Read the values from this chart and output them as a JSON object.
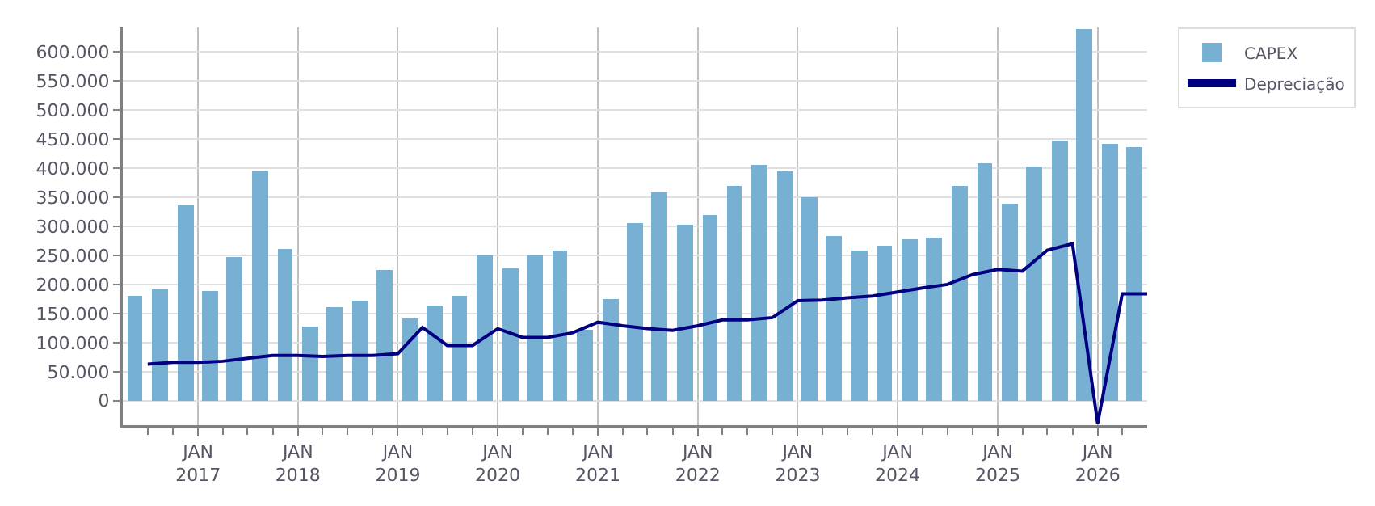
{
  "chart_data": {
    "type": "bar",
    "x": [
      "2016-05-15",
      "2016-08-15",
      "2016-11-15",
      "2017-02-15",
      "2017-05-15",
      "2017-08-15",
      "2017-11-15",
      "2018-02-15",
      "2018-05-15",
      "2018-08-15",
      "2018-11-15",
      "2019-02-15",
      "2019-05-15",
      "2019-08-15",
      "2019-11-15",
      "2020-02-15",
      "2020-05-15",
      "2020-08-15",
      "2020-11-15",
      "2021-02-15",
      "2021-05-15",
      "2021-08-15",
      "2021-11-15",
      "2022-02-15",
      "2022-05-15",
      "2022-08-15",
      "2022-11-15",
      "2023-02-15",
      "2023-05-15",
      "2023-08-15",
      "2023-11-15",
      "2024-02-15",
      "2024-05-15",
      "2024-08-15",
      "2024-11-15",
      "2025-02-15",
      "2025-05-15",
      "2025-08-15",
      "2025-11-15",
      "2026-02-15",
      "2026-05-15"
    ],
    "series": [
      {
        "name": "CAPEX",
        "color": "#77b0d3",
        "values": [
          181000,
          191000,
          335000,
          189000,
          246000,
          395000,
          262000,
          129000,
          160000,
          173000,
          225000,
          142000,
          163000,
          181000,
          251000,
          228000,
          251000,
          257000,
          121000,
          176000,
          306000,
          358000,
          303000,
          319000,
          369000,
          405000,
          395000,
          350000,
          283000,
          259000,
          267000,
          277000,
          280000,
          369000,
          408000,
          340000,
          403000,
          447000,
          640000,
          442000,
          437000
        ]
      },
      {
        "name": "Depreciação",
        "type": "line",
        "color": "#000080",
        "x": [
          "2016-07-01",
          "2016-10-01",
          "2017-01-01",
          "2017-04-01",
          "2017-07-01",
          "2017-10-01",
          "2018-01-01",
          "2018-04-01",
          "2018-07-01",
          "2018-10-01",
          "2019-01-01",
          "2019-04-01",
          "2019-07-01",
          "2019-10-01",
          "2020-01-01",
          "2020-04-01",
          "2020-07-01",
          "2020-10-01",
          "2021-01-01",
          "2021-04-01",
          "2021-07-01",
          "2021-10-01",
          "2022-01-01",
          "2022-04-01",
          "2022-07-01",
          "2022-10-01",
          "2023-01-01",
          "2023-04-01",
          "2023-07-01",
          "2023-10-01",
          "2024-01-01",
          "2024-04-01",
          "2024-07-01",
          "2024-10-01",
          "2025-01-01",
          "2025-04-01",
          "2025-07-01",
          "2025-10-01",
          "2026-01-01",
          "2026-04-01",
          "2026-07-01"
        ],
        "values": [
          63000,
          66000,
          66000,
          68000,
          73000,
          78000,
          78000,
          76000,
          78000,
          78000,
          81000,
          126000,
          95000,
          95000,
          124000,
          109000,
          109000,
          117000,
          135000,
          129000,
          124000,
          121000,
          129000,
          139000,
          139000,
          143000,
          172000,
          173000,
          177000,
          180000,
          187000,
          194000,
          200000,
          217000,
          226000,
          223000,
          259000,
          270000,
          -39000,
          184000,
          184000
        ]
      }
    ],
    "xlim": [
      "2016-04-01",
      "2026-07-01"
    ],
    "xticks": [
      {
        "value": "2016-07-01",
        "label": null
      },
      {
        "value": "2016-10-01",
        "label": null
      },
      {
        "value": "2017-01-01",
        "label": "JAN\n2017"
      },
      {
        "value": "2017-04-01",
        "label": null
      },
      {
        "value": "2017-07-01",
        "label": null
      },
      {
        "value": "2017-10-01",
        "label": null
      },
      {
        "value": "2018-01-01",
        "label": "JAN\n2018"
      },
      {
        "value": "2018-04-01",
        "label": null
      },
      {
        "value": "2018-07-01",
        "label": null
      },
      {
        "value": "2018-10-01",
        "label": null
      },
      {
        "value": "2019-01-01",
        "label": "JAN\n2019"
      },
      {
        "value": "2019-04-01",
        "label": null
      },
      {
        "value": "2019-07-01",
        "label": null
      },
      {
        "value": "2019-10-01",
        "label": null
      },
      {
        "value": "2020-01-01",
        "label": "JAN\n2020"
      },
      {
        "value": "2020-04-01",
        "label": null
      },
      {
        "value": "2020-07-01",
        "label": null
      },
      {
        "value": "2020-10-01",
        "label": null
      },
      {
        "value": "2021-01-01",
        "label": "JAN\n2021"
      },
      {
        "value": "2021-04-01",
        "label": null
      },
      {
        "value": "2021-07-01",
        "label": null
      },
      {
        "value": "2021-10-01",
        "label": null
      },
      {
        "value": "2022-01-01",
        "label": "JAN\n2022"
      },
      {
        "value": "2022-04-01",
        "label": null
      },
      {
        "value": "2022-07-01",
        "label": null
      },
      {
        "value": "2022-10-01",
        "label": null
      },
      {
        "value": "2023-01-01",
        "label": "JAN\n2023"
      },
      {
        "value": "2023-04-01",
        "label": null
      },
      {
        "value": "2023-07-01",
        "label": null
      },
      {
        "value": "2023-10-01",
        "label": null
      },
      {
        "value": "2024-01-01",
        "label": "JAN\n2024"
      },
      {
        "value": "2024-04-01",
        "label": null
      },
      {
        "value": "2024-07-01",
        "label": null
      },
      {
        "value": "2024-10-01",
        "label": null
      },
      {
        "value": "2025-01-01",
        "label": "JAN\n2025"
      },
      {
        "value": "2025-04-01",
        "label": null
      },
      {
        "value": "2025-07-01",
        "label": null
      },
      {
        "value": "2025-10-01",
        "label": null
      },
      {
        "value": "2026-01-01",
        "label": "JAN\n2026"
      },
      {
        "value": "2026-04-01",
        "label": null
      }
    ],
    "ylim": [
      -42000,
      642000
    ],
    "yticks": [
      {
        "value": 0,
        "label": "0"
      },
      {
        "value": 50000,
        "label": "50.000"
      },
      {
        "value": 100000,
        "label": "100.000"
      },
      {
        "value": 150000,
        "label": "150.000"
      },
      {
        "value": 200000,
        "label": "200.000"
      },
      {
        "value": 250000,
        "label": "250.000"
      },
      {
        "value": 300000,
        "label": "300.000"
      },
      {
        "value": 350000,
        "label": "350.000"
      },
      {
        "value": 400000,
        "label": "400.000"
      },
      {
        "value": 450000,
        "label": "450.000"
      },
      {
        "value": 500000,
        "label": "500.000"
      },
      {
        "value": 550000,
        "label": "550.000"
      },
      {
        "value": 600000,
        "label": "600.000"
      }
    ],
    "grid": true,
    "legend": "top right",
    "marker": "none",
    "line_style": "solid"
  }
}
